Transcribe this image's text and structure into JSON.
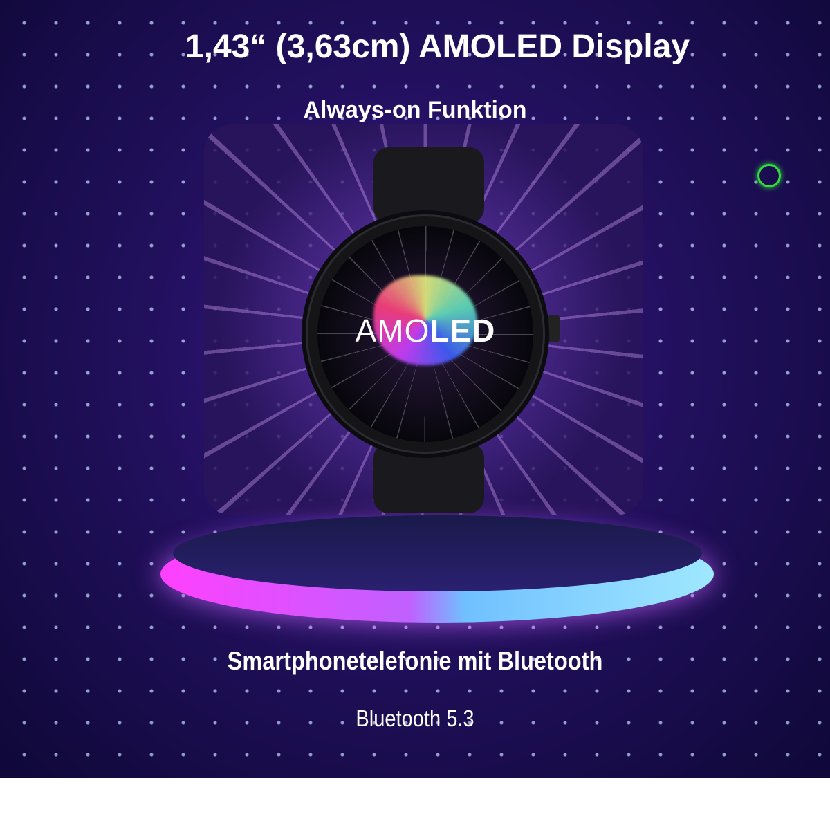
{
  "title": "1,43“ (3,63cm) AMOLED Display",
  "subtitle": "Always-on Funktion",
  "watch": {
    "screen_logo_light": "AMO",
    "screen_logo_bold": "LED"
  },
  "feature": "Smartphonetelefonie mit Bluetooth",
  "bluetooth": "Bluetooth 5.3",
  "colors": {
    "background": "#22105e",
    "indicator": "#2fe03a",
    "platform_left": "#ff40ff",
    "platform_right": "#a0e8ff"
  }
}
